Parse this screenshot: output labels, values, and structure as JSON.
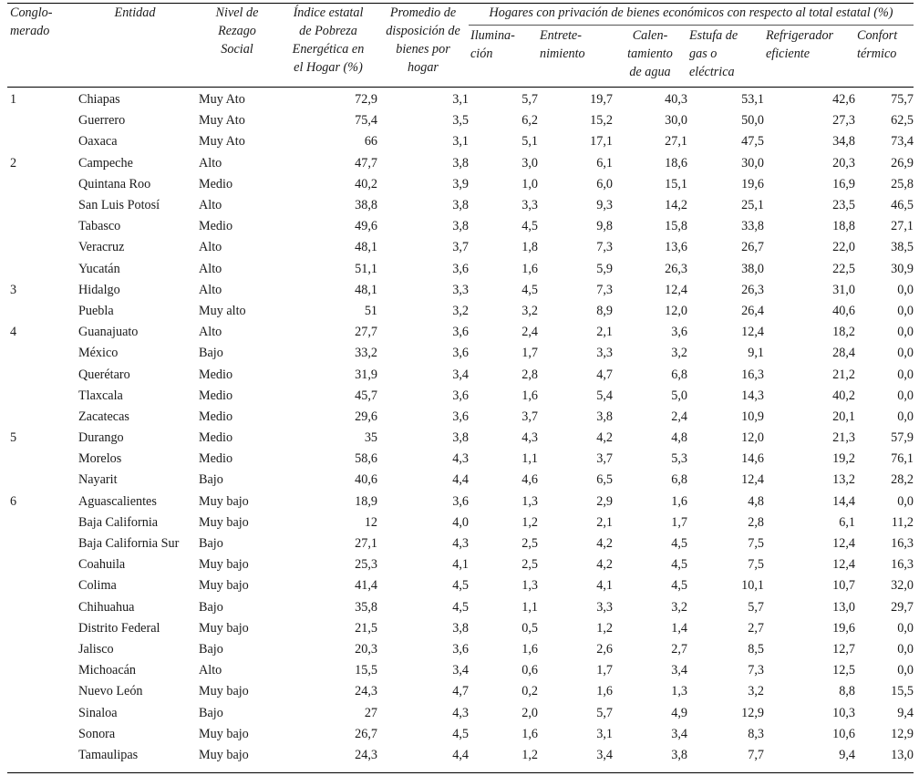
{
  "headers": {
    "conglomerado": "Conglo-\nmerado",
    "entidad": "Entidad",
    "nivel": "Nivel de\nRezago\nSocial",
    "indice": "Índice estatal\nde Pobreza\nEnergética en\nel Hogar (%)",
    "promedio": "Promedio de\ndisposición de\nbienes por\nhogar",
    "group": "Hogares con privación de bienes económicos con respecto al total estatal (%)",
    "iluminacion": "Ilumina-\nción",
    "entretenimiento": "Entrete-\nnimiento",
    "calentamiento": "Calen-\ntamiento\nde agua",
    "estufa": "Estufa de\ngas o\neléctrica",
    "refrigerador": "Refrigerador\neficiente",
    "confort": "Confort\ntérmico"
  },
  "rows": [
    {
      "cong": "1",
      "entidad": "Chiapas",
      "nivel": "Muy Ato",
      "indice": "72,9",
      "promedio": "3,1",
      "ilum": "5,7",
      "entre": "19,7",
      "calen": "40,3",
      "estufa": "53,1",
      "refri": "42,6",
      "confort": "75,7"
    },
    {
      "cong": "",
      "entidad": "Guerrero",
      "nivel": "Muy Ato",
      "indice": "75,4",
      "promedio": "3,5",
      "ilum": "6,2",
      "entre": "15,2",
      "calen": "30,0",
      "estufa": "50,0",
      "refri": "27,3",
      "confort": "62,5"
    },
    {
      "cong": "",
      "entidad": "Oaxaca",
      "nivel": "Muy Ato",
      "indice": "66",
      "promedio": "3,1",
      "ilum": "5,1",
      "entre": "17,1",
      "calen": "27,1",
      "estufa": "47,5",
      "refri": "34,8",
      "confort": "73,4"
    },
    {
      "cong": "2",
      "entidad": "Campeche",
      "nivel": "Alto",
      "indice": "47,7",
      "promedio": "3,8",
      "ilum": "3,0",
      "entre": "6,1",
      "calen": "18,6",
      "estufa": "30,0",
      "refri": "20,3",
      "confort": "26,9"
    },
    {
      "cong": "",
      "entidad": "Quintana Roo",
      "nivel": "Medio",
      "indice": "40,2",
      "promedio": "3,9",
      "ilum": "1,0",
      "entre": "6,0",
      "calen": "15,1",
      "estufa": "19,6",
      "refri": "16,9",
      "confort": "25,8"
    },
    {
      "cong": "",
      "entidad": "San Luis Potosí",
      "nivel": "Alto",
      "indice": "38,8",
      "promedio": "3,8",
      "ilum": "3,3",
      "entre": "9,3",
      "calen": "14,2",
      "estufa": "25,1",
      "refri": "23,5",
      "confort": "46,5"
    },
    {
      "cong": "",
      "entidad": "Tabasco",
      "nivel": "Medio",
      "indice": "49,6",
      "promedio": "3,8",
      "ilum": "4,5",
      "entre": "9,8",
      "calen": "15,8",
      "estufa": "33,8",
      "refri": "18,8",
      "confort": "27,1"
    },
    {
      "cong": "",
      "entidad": "Veracruz",
      "nivel": "Alto",
      "indice": "48,1",
      "promedio": "3,7",
      "ilum": "1,8",
      "entre": "7,3",
      "calen": "13,6",
      "estufa": "26,7",
      "refri": "22,0",
      "confort": "38,5"
    },
    {
      "cong": "",
      "entidad": "Yucatán",
      "nivel": "Alto",
      "indice": "51,1",
      "promedio": "3,6",
      "ilum": "1,6",
      "entre": "5,9",
      "calen": "26,3",
      "estufa": "38,0",
      "refri": "22,5",
      "confort": "30,9"
    },
    {
      "cong": "3",
      "entidad": "Hidalgo",
      "nivel": "Alto",
      "indice": "48,1",
      "promedio": "3,3",
      "ilum": "4,5",
      "entre": "7,3",
      "calen": "12,4",
      "estufa": "26,3",
      "refri": "31,0",
      "confort": "0,0"
    },
    {
      "cong": "",
      "entidad": "Puebla",
      "nivel": "Muy alto",
      "indice": "51",
      "promedio": "3,2",
      "ilum": "3,2",
      "entre": "8,9",
      "calen": "12,0",
      "estufa": "26,4",
      "refri": "40,6",
      "confort": "0,0"
    },
    {
      "cong": "4",
      "entidad": "Guanajuato",
      "nivel": "Alto",
      "indice": "27,7",
      "promedio": "3,6",
      "ilum": "2,4",
      "entre": "2,1",
      "calen": "3,6",
      "estufa": "12,4",
      "refri": "18,2",
      "confort": "0,0"
    },
    {
      "cong": "",
      "entidad": "México",
      "nivel": "Bajo",
      "indice": "33,2",
      "promedio": "3,6",
      "ilum": "1,7",
      "entre": "3,3",
      "calen": "3,2",
      "estufa": "9,1",
      "refri": "28,4",
      "confort": "0,0"
    },
    {
      "cong": "",
      "entidad": "Querétaro",
      "nivel": "Medio",
      "indice": "31,9",
      "promedio": "3,4",
      "ilum": "2,8",
      "entre": "4,7",
      "calen": "6,8",
      "estufa": "16,3",
      "refri": "21,2",
      "confort": "0,0"
    },
    {
      "cong": "",
      "entidad": "Tlaxcala",
      "nivel": "Medio",
      "indice": "45,7",
      "promedio": "3,6",
      "ilum": "1,6",
      "entre": "5,4",
      "calen": "5,0",
      "estufa": "14,3",
      "refri": "40,2",
      "confort": "0,0"
    },
    {
      "cong": "",
      "entidad": "Zacatecas",
      "nivel": "Medio",
      "indice": "29,6",
      "promedio": "3,6",
      "ilum": "3,7",
      "entre": "3,8",
      "calen": "2,4",
      "estufa": "10,9",
      "refri": "20,1",
      "confort": "0,0"
    },
    {
      "cong": "5",
      "entidad": "Durango",
      "nivel": "Medio",
      "indice": "35",
      "promedio": "3,8",
      "ilum": "4,3",
      "entre": "4,2",
      "calen": "4,8",
      "estufa": "12,0",
      "refri": "21,3",
      "confort": "57,9"
    },
    {
      "cong": "",
      "entidad": "Morelos",
      "nivel": "Medio",
      "indice": "58,6",
      "promedio": "4,3",
      "ilum": "1,1",
      "entre": "3,7",
      "calen": "5,3",
      "estufa": "14,6",
      "refri": "19,2",
      "confort": "76,1"
    },
    {
      "cong": "",
      "entidad": "Nayarit",
      "nivel": "Bajo",
      "indice": "40,6",
      "promedio": "4,4",
      "ilum": "4,6",
      "entre": "6,5",
      "calen": "6,8",
      "estufa": "12,4",
      "refri": "13,2",
      "confort": "28,2"
    },
    {
      "cong": "6",
      "entidad": "Aguascalientes",
      "nivel": "Muy bajo",
      "indice": "18,9",
      "promedio": "3,6",
      "ilum": "1,3",
      "entre": "2,9",
      "calen": "1,6",
      "estufa": "4,8",
      "refri": "14,4",
      "confort": "0,0"
    },
    {
      "cong": "",
      "entidad": "Baja California",
      "nivel": "Muy bajo",
      "indice": "12",
      "promedio": "4,0",
      "ilum": "1,2",
      "entre": "2,1",
      "calen": "1,7",
      "estufa": "2,8",
      "refri": "6,1",
      "confort": "11,2"
    },
    {
      "cong": "",
      "entidad": "Baja California Sur",
      "nivel": "Bajo",
      "indice": "27,1",
      "promedio": "4,3",
      "ilum": "2,5",
      "entre": "4,2",
      "calen": "4,5",
      "estufa": "7,5",
      "refri": "12,4",
      "confort": "16,3"
    },
    {
      "cong": "",
      "entidad": "Coahuila",
      "nivel": "Muy bajo",
      "indice": "25,3",
      "promedio": "4,1",
      "ilum": "2,5",
      "entre": "4,2",
      "calen": "4,5",
      "estufa": "7,5",
      "refri": "12,4",
      "confort": "16,3"
    },
    {
      "cong": "",
      "entidad": "Colima",
      "nivel": "Muy bajo",
      "indice": "41,4",
      "promedio": "4,5",
      "ilum": "1,3",
      "entre": "4,1",
      "calen": "4,5",
      "estufa": "10,1",
      "refri": "10,7",
      "confort": "32,0"
    },
    {
      "cong": "",
      "entidad": "Chihuahua",
      "nivel": "Bajo",
      "indice": "35,8",
      "promedio": "4,5",
      "ilum": "1,1",
      "entre": "3,3",
      "calen": "3,2",
      "estufa": "5,7",
      "refri": "13,0",
      "confort": "29,7"
    },
    {
      "cong": "",
      "entidad": "Distrito Federal",
      "nivel": "Muy bajo",
      "indice": "21,5",
      "promedio": "3,8",
      "ilum": "0,5",
      "entre": "1,2",
      "calen": "1,4",
      "estufa": "2,7",
      "refri": "19,6",
      "confort": "0,0"
    },
    {
      "cong": "",
      "entidad": "Jalisco",
      "nivel": "Bajo",
      "indice": "20,3",
      "promedio": "3,6",
      "ilum": "1,6",
      "entre": "2,6",
      "calen": "2,7",
      "estufa": "8,5",
      "refri": "12,7",
      "confort": "0,0"
    },
    {
      "cong": "",
      "entidad": "Michoacán",
      "nivel": "Alto",
      "indice": "15,5",
      "promedio": "3,4",
      "ilum": "0,6",
      "entre": "1,7",
      "calen": "3,4",
      "estufa": "7,3",
      "refri": "12,5",
      "confort": "0,0"
    },
    {
      "cong": "",
      "entidad": "Nuevo León",
      "nivel": "Muy bajo",
      "indice": "24,3",
      "promedio": "4,7",
      "ilum": "0,2",
      "entre": "1,6",
      "calen": "1,3",
      "estufa": "3,2",
      "refri": "8,8",
      "confort": "15,5"
    },
    {
      "cong": "",
      "entidad": "Sinaloa",
      "nivel": "Bajo",
      "indice": "27",
      "promedio": "4,3",
      "ilum": "2,0",
      "entre": "5,7",
      "calen": "4,9",
      "estufa": "12,9",
      "refri": "10,3",
      "confort": "9,4"
    },
    {
      "cong": "",
      "entidad": "Sonora",
      "nivel": "Muy bajo",
      "indice": "26,7",
      "promedio": "4,5",
      "ilum": "1,6",
      "entre": "3,1",
      "calen": "3,4",
      "estufa": "8,3",
      "refri": "10,6",
      "confort": "12,9"
    },
    {
      "cong": "",
      "entidad": "Tamaulipas",
      "nivel": "Muy bajo",
      "indice": "24,3",
      "promedio": "4,4",
      "ilum": "1,2",
      "entre": "3,4",
      "calen": "3,8",
      "estufa": "7,7",
      "refri": "9,4",
      "confort": "13,0"
    }
  ]
}
